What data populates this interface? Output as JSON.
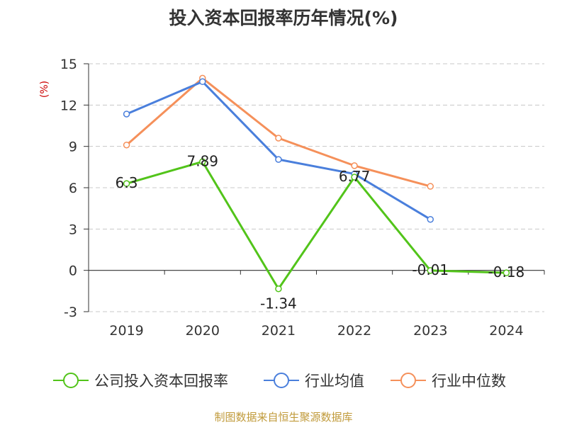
{
  "title": "投入资本回报率历年情况(%)",
  "source": "制图数据来自恒生聚源数据库",
  "chart_data": {
    "type": "line",
    "title": "投入资本回报率历年情况(%)",
    "ylabel": "(%)",
    "categories": [
      "2019",
      "2020",
      "2021",
      "2022",
      "2023",
      "2024"
    ],
    "ylim": [
      -3,
      15
    ],
    "yticks": [
      "15",
      "12",
      "9",
      "6",
      "3",
      "0",
      "-3"
    ],
    "grid": true,
    "legend_position": "bottom",
    "series": [
      {
        "name": "公司投入资本回报率",
        "color": "#52c41a",
        "values": [
          6.3,
          7.89,
          -1.34,
          6.77,
          -0.01,
          -0.18
        ],
        "labels": [
          "6.3",
          "7.89",
          "-1.34",
          "6.77",
          "-0.01",
          "-0.18"
        ]
      },
      {
        "name": "行业均值",
        "color": "#4a7fdc",
        "values": [
          11.35,
          13.7,
          8.05,
          7.0,
          3.7,
          null
        ]
      },
      {
        "name": "行业中位数",
        "color": "#f5905a",
        "values": [
          9.1,
          13.95,
          9.6,
          7.6,
          6.1,
          null
        ]
      }
    ]
  }
}
